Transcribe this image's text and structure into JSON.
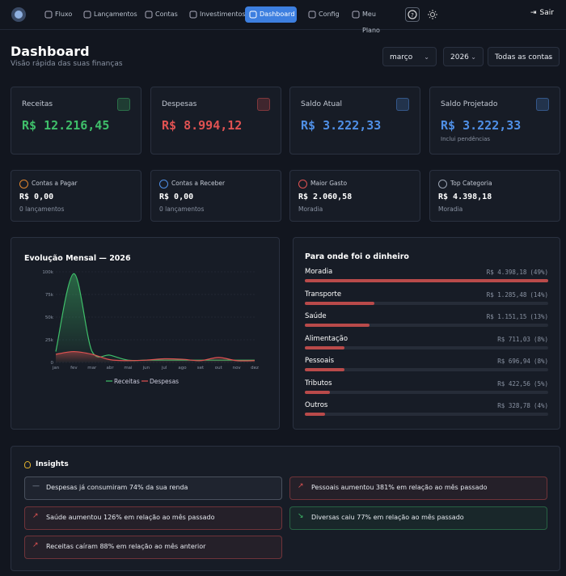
{
  "nav": {
    "items": [
      "Fluxo",
      "Lançamentos",
      "Contas",
      "Investimentos",
      "Dashboard",
      "Config",
      "Meu Plano"
    ],
    "logout": "Sair"
  },
  "header": {
    "title": "Dashboard",
    "subtitle": "Visão rápida das suas finanças",
    "filters": [
      "março",
      "2026",
      "Todas as contas"
    ]
  },
  "cards": [
    {
      "label": "Receitas",
      "value": "R$ 12.216,45",
      "color": "#3fbf6a"
    },
    {
      "label": "Despesas",
      "value": "R$ 8.994,12",
      "color": "#e05252"
    },
    {
      "label": "Saldo Atual",
      "value": "R$ 3.222,33",
      "color": "#4f8fe6"
    },
    {
      "label": "Saldo Projetado",
      "value": "R$ 3.222,33",
      "note": "Inclui pendências",
      "color": "#4f8fe6"
    }
  ],
  "small_cards": [
    {
      "label": "Contas a Pagar",
      "value": "R$ 0,00",
      "note": "0 lançamentos",
      "color": "#e0862e"
    },
    {
      "label": "Contas a Receber",
      "value": "R$ 0,00",
      "note": "0 lançamentos",
      "color": "#4f8fe6"
    },
    {
      "label": "Maior Gasto",
      "value": "R$ 2.060,58",
      "note": "Moradia",
      "color": "#e05252"
    },
    {
      "label": "Top Categoria",
      "value": "R$ 4.398,18",
      "note": "Moradia",
      "color": "#9aa3b2"
    }
  ],
  "chart_data": {
    "type": "line",
    "title": "Evolução Mensal — 2026",
    "categories": [
      "jan",
      "fev",
      "mar",
      "abr",
      "mai",
      "jun",
      "jul",
      "ago",
      "set",
      "out",
      "nov",
      "dez"
    ],
    "series": [
      {
        "name": "Receitas",
        "color": "#3fbf6a",
        "values": [
          12000,
          98000,
          12216.45,
          8000,
          2500,
          2500,
          2500,
          2500,
          2500,
          2500,
          2500,
          2500
        ]
      },
      {
        "name": "Despesas",
        "color": "#e05252",
        "values": [
          9000,
          12000,
          8994.12,
          3000,
          2000,
          2500,
          4000,
          3500,
          2000,
          5500,
          2000,
          2000
        ]
      }
    ],
    "ylim": [
      0,
      100000
    ],
    "yticks": [
      {
        "value": 0,
        "label": "0"
      },
      {
        "value": 25000,
        "label": "25k"
      },
      {
        "value": 50000,
        "label": "50k"
      },
      {
        "value": 75000,
        "label": "75k"
      },
      {
        "value": 100000,
        "label": "100k"
      }
    ],
    "grid": true
  },
  "breakdown": {
    "title": "Para onde foi o dinheiro",
    "color": "#b94a4a",
    "items": [
      {
        "name": "Moradia",
        "amount": "R$ 4.398,18",
        "percent": 49,
        "percent_label": "(49%)"
      },
      {
        "name": "Transporte",
        "amount": "R$ 1.285,48",
        "percent": 14,
        "percent_label": "(14%)"
      },
      {
        "name": "Saúde",
        "amount": "R$ 1.151,15",
        "percent": 13,
        "percent_label": "(13%)"
      },
      {
        "name": "Alimentação",
        "amount": "R$ 711,03",
        "percent": 8,
        "percent_label": "(8%)"
      },
      {
        "name": "Pessoais",
        "amount": "R$ 696,94",
        "percent": 8,
        "percent_label": "(8%)"
      },
      {
        "name": "Tributos",
        "amount": "R$ 422,56",
        "percent": 5,
        "percent_label": "(5%)"
      },
      {
        "name": "Outros",
        "amount": "R$ 328,78",
        "percent": 4,
        "percent_label": "(4%)"
      }
    ]
  },
  "insights": {
    "title": "Insights",
    "items": [
      {
        "text": "Despesas já consumiram 74% da sua renda",
        "color": "#8a93a3"
      },
      {
        "text": "Pessoais aumentou 381% em relação ao mês passado",
        "color": "#e05252"
      },
      {
        "text": "Saúde aumentou 126% em relação ao mês passado",
        "color": "#e05252"
      },
      {
        "text": "Diversas caiu 77% em relação ao mês passado",
        "color": "#3fbf6a"
      },
      {
        "text": "Receitas caíram 88% em relação ao mês anterior",
        "color": "#e05252"
      }
    ]
  }
}
